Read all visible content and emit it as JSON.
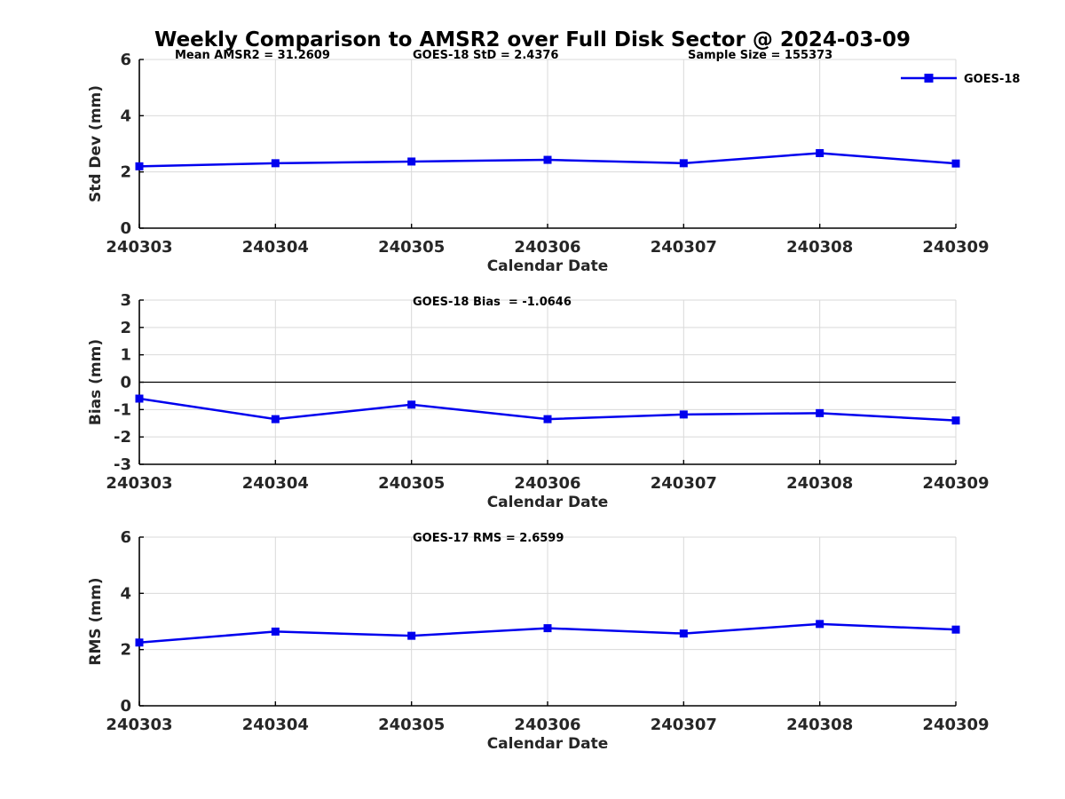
{
  "title": "Weekly Comparison to AMSR2 over Full Disk Sector @ 2024-03-09",
  "xlabel": "Calendar Date",
  "categories": [
    "240303",
    "240304",
    "240305",
    "240306",
    "240307",
    "240308",
    "240309"
  ],
  "legend": {
    "label": "GOES-18"
  },
  "colors": {
    "line": "#0000ee",
    "marker": "#0000ee",
    "grid": "#d9d9d9",
    "axis": "#000000",
    "zero_line": "#000000",
    "tick_text": "#262626",
    "title_text": "#000000"
  },
  "chart_data": [
    {
      "id": "stddev",
      "type": "line",
      "ylabel": "Std Dev (mm)",
      "xlabel": "Calendar Date",
      "ylim": [
        0,
        6
      ],
      "yticks": [
        0,
        2,
        4,
        6
      ],
      "grid": true,
      "zero_line": false,
      "show_legend": true,
      "legend_position": "top-right-outside",
      "annotations": [
        {
          "text": "Mean AMSR2 = 31.2609",
          "x": 197
        },
        {
          "text": "GOES-18 StD = 2.4376",
          "x": 465
        },
        {
          "text": "Sample Size = 155373",
          "x": 775
        }
      ],
      "categories": [
        "240303",
        "240304",
        "240305",
        "240306",
        "240307",
        "240308",
        "240309"
      ],
      "series": [
        {
          "name": "GOES-18",
          "values": [
            2.2,
            2.31,
            2.37,
            2.43,
            2.31,
            2.67,
            2.3
          ]
        }
      ]
    },
    {
      "id": "bias",
      "type": "line",
      "ylabel": "Bias (mm)",
      "xlabel": "Calendar Date",
      "ylim": [
        -3,
        3
      ],
      "yticks": [
        -3,
        -2,
        -1,
        0,
        1,
        2,
        3
      ],
      "grid": true,
      "zero_line": true,
      "show_legend": false,
      "annotations": [
        {
          "text": "GOES-18 Bias  = -1.0646",
          "x": 465
        }
      ],
      "categories": [
        "240303",
        "240304",
        "240305",
        "240306",
        "240307",
        "240308",
        "240309"
      ],
      "series": [
        {
          "name": "GOES-18",
          "values": [
            -0.6,
            -1.35,
            -0.82,
            -1.35,
            -1.18,
            -1.13,
            -1.4
          ]
        }
      ]
    },
    {
      "id": "rms",
      "type": "line",
      "ylabel": "RMS (mm)",
      "xlabel": "Calendar Date",
      "ylim": [
        0,
        6
      ],
      "yticks": [
        0,
        2,
        4,
        6
      ],
      "grid": true,
      "zero_line": false,
      "show_legend": false,
      "annotations": [
        {
          "text": "GOES-17 RMS = 2.6599",
          "x": 465
        }
      ],
      "categories": [
        "240303",
        "240304",
        "240305",
        "240306",
        "240307",
        "240308",
        "240309"
      ],
      "series": [
        {
          "name": "GOES-17",
          "values": [
            2.25,
            2.64,
            2.49,
            2.76,
            2.57,
            2.91,
            2.71
          ]
        }
      ]
    }
  ]
}
